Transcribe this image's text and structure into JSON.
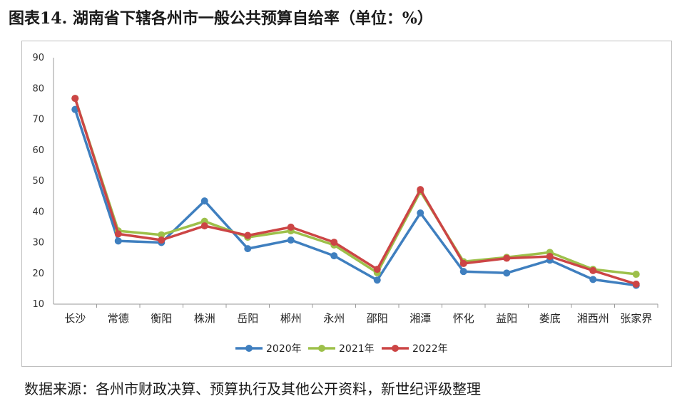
{
  "title": "图表14. 湖南省下辖各州市一般公共预算自给率（单位：%）",
  "source": "数据来源：各州市财政决算、预算执行及其他公开资料，新世纪评级整理",
  "chart_data": {
    "type": "line",
    "title": "图表14. 湖南省下辖各州市一般公共预算自给率（单位：%）",
    "xlabel": "",
    "ylabel": "",
    "ylim": [
      10,
      90
    ],
    "yticks": [
      10,
      20,
      30,
      40,
      50,
      60,
      70,
      80,
      90
    ],
    "grid": false,
    "legend_position": "bottom",
    "categories": [
      "长沙",
      "常德",
      "衡阳",
      "株洲",
      "岳阳",
      "郴州",
      "永州",
      "邵阳",
      "湘潭",
      "怀化",
      "益阳",
      "娄底",
      "湘西州",
      "张家界"
    ],
    "series": [
      {
        "name": "2020年",
        "color": "#3f7fbf",
        "values": [
          73.2,
          30.5,
          30.0,
          43.5,
          28.0,
          30.8,
          25.7,
          17.8,
          39.6,
          20.6,
          20.1,
          24.3,
          18.0,
          16.1
        ]
      },
      {
        "name": "2021年",
        "color": "#9dc04a",
        "values": [
          76.8,
          33.8,
          32.5,
          36.9,
          31.7,
          33.8,
          29.2,
          20.2,
          46.6,
          23.8,
          25.2,
          26.8,
          21.3,
          19.7
        ]
      },
      {
        "name": "2022年",
        "color": "#cc4545",
        "values": [
          76.8,
          32.8,
          30.8,
          35.4,
          32.3,
          35.0,
          30.1,
          21.3,
          47.2,
          23.2,
          24.9,
          25.5,
          20.9,
          16.5
        ]
      }
    ]
  }
}
